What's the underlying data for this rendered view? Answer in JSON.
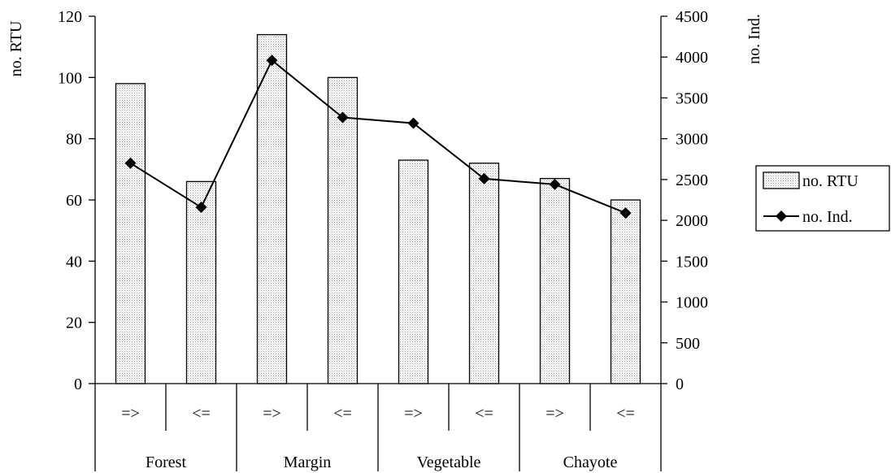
{
  "chart_data": {
    "type": "bar+line",
    "groups": [
      "Forest",
      "Margin",
      "Vegetable",
      "Chayote"
    ],
    "subcategories": [
      "=>",
      "<=",
      "=>",
      "<=",
      "=>",
      "<=",
      "=>",
      "<="
    ],
    "series": [
      {
        "name": "no. RTU",
        "type": "bar",
        "axis": "left",
        "values": [
          98,
          66,
          114,
          100,
          73,
          72,
          67,
          60
        ]
      },
      {
        "name": "no. Ind.",
        "type": "line",
        "axis": "right",
        "values": [
          2700,
          2160,
          3960,
          3260,
          3190,
          2510,
          2440,
          2090
        ]
      }
    ],
    "y_left": {
      "label": "no. RTU",
      "min": 0,
      "max": 120,
      "step": 20
    },
    "y_right": {
      "label": "no. Ind.",
      "min": 0,
      "max": 4500,
      "step": 500
    },
    "legend": {
      "position": "right"
    },
    "grid": false
  }
}
